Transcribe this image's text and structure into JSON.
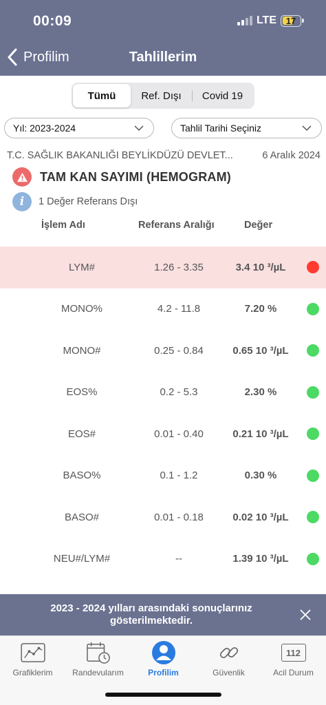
{
  "status_bar": {
    "time": "00:09",
    "network": "LTE",
    "battery": "17"
  },
  "nav": {
    "back_label": "Profilim",
    "title": "Tahlillerim"
  },
  "segments": [
    "Tümü",
    "Ref. Dışı",
    "Covid 19"
  ],
  "filters": {
    "year": "Yıl: 2023-2024",
    "date": "Tahlil Tarihi Seçiniz"
  },
  "report": {
    "hospital": "T.C. SAĞLIK BAKANLIĞI BEYLİKDÜZÜ DEVLET...",
    "date": "6 Aralık 2024",
    "test_title": "TAM KAN SAYIMI (HEMOGRAM)",
    "info": "1 Değer Referans Dışı"
  },
  "columns": {
    "name": "İşlem Adı",
    "range": "Referans Aralığı",
    "value": "Değer"
  },
  "rows": [
    {
      "name": "LYM#",
      "range": "1.26 - 3.35",
      "value": "3.4 10 ³/µL",
      "status": "out"
    },
    {
      "name": "MONO%",
      "range": "4.2 - 11.8",
      "value": "7.20 %",
      "status": "ok"
    },
    {
      "name": "MONO#",
      "range": "0.25 - 0.84",
      "value": "0.65 10 ³/µL",
      "status": "ok"
    },
    {
      "name": "EOS%",
      "range": "0.2 - 5.3",
      "value": "2.30 %",
      "status": "ok"
    },
    {
      "name": "EOS#",
      "range": "0.01 - 0.40",
      "value": "0.21 10 ³/µL",
      "status": "ok"
    },
    {
      "name": "BASO%",
      "range": "0.1 - 1.2",
      "value": "0.30 %",
      "status": "ok"
    },
    {
      "name": "BASO#",
      "range": "0.01 - 0.18",
      "value": "0.02 10 ³/µL",
      "status": "ok"
    },
    {
      "name": "NEU#/LYM#",
      "range": "--",
      "value": "1.39 10 ³/µL",
      "status": "ok"
    }
  ],
  "banner": {
    "text": "2023 - 2024 yılları arasındaki sonuçlarınız gösterilmektedir."
  },
  "tabs": {
    "graphs": "Grafiklerim",
    "appointments": "Randevularım",
    "profile": "Profilim",
    "security": "Güvenlik",
    "emergency": "Acil Durum",
    "emergency_number": "112"
  },
  "colors": {
    "header": "#6b7290",
    "ok": "#4cd964",
    "out": "#ff3b30",
    "alert_row": "#fbe0e0",
    "active_tab": "#2a7be0"
  }
}
